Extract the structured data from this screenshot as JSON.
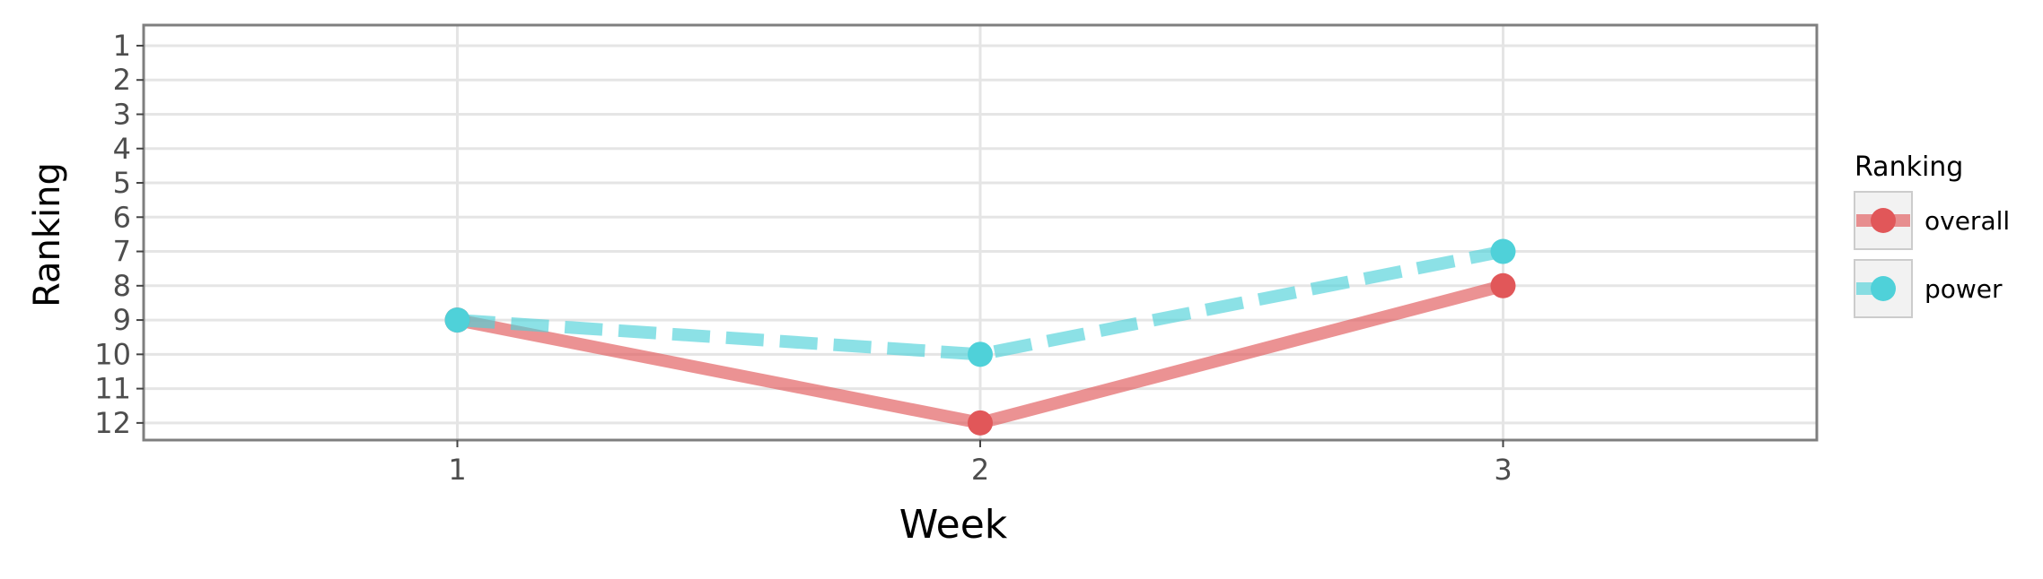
{
  "chart_data": {
    "type": "line",
    "title": "",
    "xlabel": "Week",
    "ylabel": "Ranking",
    "x": [
      1,
      2,
      3
    ],
    "x_ticks": [
      "1",
      "2",
      "3"
    ],
    "xlim": [
      0.4,
      3.6
    ],
    "y_ticks": [
      "1",
      "2",
      "3",
      "4",
      "5",
      "6",
      "7",
      "8",
      "9",
      "10",
      "11",
      "12"
    ],
    "ylim": [
      12.5,
      0.4
    ],
    "y_reversed": true,
    "grid": true,
    "legend": {
      "title": "Ranking",
      "placement": "right",
      "entries": [
        "overall",
        "power"
      ]
    },
    "series": [
      {
        "name": "overall",
        "values": [
          9,
          12,
          8
        ],
        "color": "#e15759",
        "line_style": "solid"
      },
      {
        "name": "power",
        "values": [
          9,
          10,
          7
        ],
        "color": "#4fd1d9",
        "line_style": "dashed"
      }
    ]
  }
}
